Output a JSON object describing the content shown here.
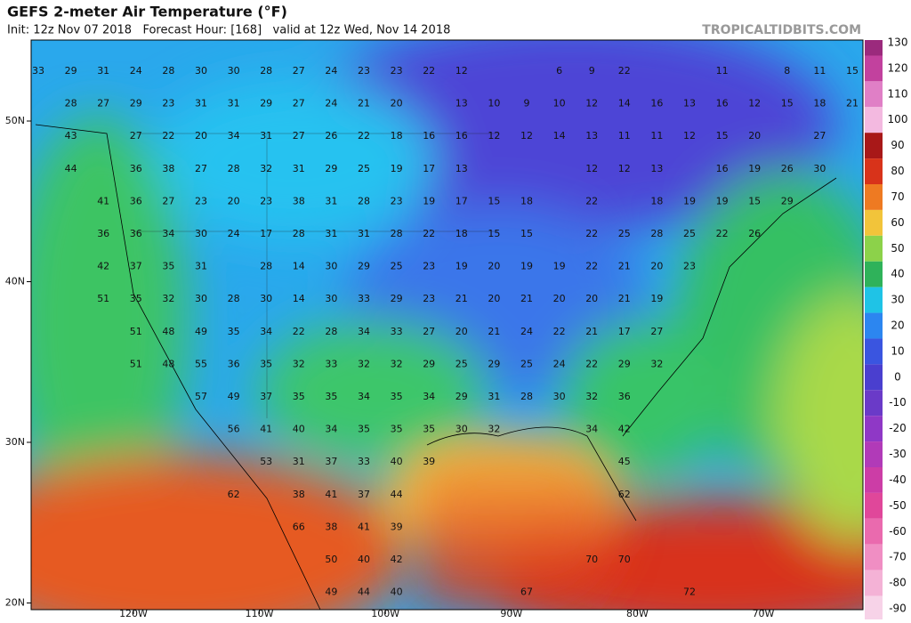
{
  "header": {
    "title": "GEFS 2-meter Air Temperature (°F)",
    "subtitle": "Init: 12z Nov 07 2018   Forecast Hour: [168]   valid at 12z Wed, Nov 14 2018",
    "brand": "TROPICALTIDBITS.COM"
  },
  "map": {
    "latitude_labels": [
      "50N",
      "40N",
      "30N",
      "20N"
    ],
    "longitude_labels": [
      "120W",
      "110W",
      "100W",
      "90W",
      "80W",
      "70W"
    ],
    "point_values": [
      [
        33,
        29,
        31,
        24,
        28,
        30,
        30,
        28,
        27,
        24,
        23,
        23,
        22,
        12,
        null,
        null,
        6,
        9,
        22,
        null,
        null,
        11,
        null,
        8,
        11,
        15
      ],
      [
        null,
        28,
        27,
        29,
        23,
        31,
        31,
        29,
        27,
        24,
        21,
        20,
        null,
        13,
        10,
        9,
        10,
        12,
        14,
        16,
        13,
        16,
        12,
        15,
        18,
        21
      ],
      [
        null,
        43,
        null,
        27,
        22,
        20,
        34,
        31,
        27,
        26,
        22,
        18,
        16,
        16,
        12,
        12,
        14,
        13,
        11,
        11,
        12,
        15,
        20,
        null,
        27,
        null
      ],
      [
        null,
        44,
        null,
        36,
        38,
        27,
        28,
        32,
        31,
        29,
        25,
        19,
        17,
        13,
        null,
        null,
        null,
        12,
        12,
        13,
        null,
        16,
        19,
        26,
        30,
        null
      ],
      [
        null,
        null,
        41,
        36,
        27,
        23,
        20,
        23,
        38,
        31,
        28,
        23,
        19,
        17,
        15,
        18,
        null,
        22,
        null,
        18,
        19,
        19,
        15,
        29,
        null,
        null
      ],
      [
        null,
        null,
        36,
        36,
        34,
        30,
        24,
        17,
        28,
        31,
        31,
        28,
        22,
        18,
        15,
        15,
        null,
        22,
        25,
        28,
        25,
        22,
        26,
        null,
        null,
        null
      ],
      [
        null,
        null,
        42,
        37,
        35,
        31,
        null,
        28,
        14,
        30,
        29,
        25,
        23,
        19,
        20,
        19,
        19,
        22,
        21,
        20,
        23,
        null,
        null,
        null,
        null,
        null
      ],
      [
        null,
        null,
        51,
        35,
        32,
        30,
        28,
        30,
        14,
        30,
        33,
        29,
        23,
        21,
        20,
        21,
        20,
        20,
        21,
        19,
        null,
        null,
        null,
        null,
        null,
        null
      ],
      [
        null,
        null,
        null,
        51,
        48,
        49,
        35,
        34,
        22,
        28,
        34,
        33,
        27,
        20,
        21,
        24,
        22,
        21,
        17,
        27,
        null,
        null,
        null,
        null,
        null,
        null
      ],
      [
        null,
        null,
        null,
        51,
        48,
        55,
        36,
        35,
        32,
        33,
        32,
        32,
        29,
        25,
        29,
        25,
        24,
        22,
        29,
        32,
        null,
        null,
        null,
        null,
        null,
        null
      ],
      [
        null,
        null,
        null,
        null,
        null,
        57,
        49,
        37,
        35,
        35,
        34,
        35,
        34,
        29,
        31,
        28,
        30,
        32,
        36,
        null,
        null,
        null,
        null,
        null,
        null,
        null
      ],
      [
        null,
        null,
        null,
        null,
        null,
        null,
        56,
        41,
        40,
        34,
        35,
        35,
        35,
        30,
        32,
        null,
        null,
        34,
        42,
        null,
        null,
        null,
        null,
        null,
        null,
        null
      ],
      [
        null,
        null,
        null,
        null,
        null,
        null,
        null,
        53,
        31,
        37,
        33,
        40,
        39,
        null,
        null,
        null,
        null,
        null,
        45,
        null,
        null,
        null,
        null,
        null,
        null,
        null
      ],
      [
        null,
        null,
        null,
        null,
        null,
        null,
        62,
        null,
        38,
        41,
        37,
        44,
        null,
        null,
        null,
        null,
        null,
        null,
        62,
        null,
        null,
        null,
        null,
        null,
        null,
        null
      ],
      [
        null,
        null,
        null,
        null,
        null,
        null,
        null,
        null,
        66,
        38,
        41,
        39,
        null,
        null,
        null,
        null,
        null,
        null,
        null,
        null,
        null,
        null,
        null,
        null,
        null,
        null
      ],
      [
        null,
        null,
        null,
        null,
        null,
        null,
        null,
        null,
        null,
        50,
        40,
        42,
        null,
        null,
        null,
        null,
        null,
        70,
        70,
        null,
        null,
        null,
        null,
        null,
        null,
        null
      ],
      [
        null,
        null,
        null,
        null,
        null,
        null,
        null,
        null,
        null,
        49,
        44,
        40,
        null,
        null,
        null,
        67,
        null,
        null,
        null,
        null,
        72,
        null,
        null,
        null,
        null,
        null
      ]
    ]
  },
  "colorbar": {
    "ticks": [
      130,
      120,
      110,
      100,
      90,
      80,
      70,
      60,
      50,
      40,
      30,
      20,
      10,
      0,
      -10,
      -20,
      -30,
      -40,
      -50,
      -60,
      -70,
      -80,
      -90
    ],
    "colors": [
      "#9b2a7d",
      "#c2419e",
      "#e07fc6",
      "#f3b9e0",
      "#a81818",
      "#d8331a",
      "#ee7a22",
      "#f2c43a",
      "#8cd24a",
      "#2fb25a",
      "#1fc3e6",
      "#2c86f0",
      "#3a55e0",
      "#4a3fcf",
      "#6a3ac8",
      "#8f38c6",
      "#b13ab8",
      "#cc3da6",
      "#e0479a",
      "#ea6aae",
      "#f08ec3",
      "#f4b2d6",
      "#f7d3e8"
    ]
  }
}
